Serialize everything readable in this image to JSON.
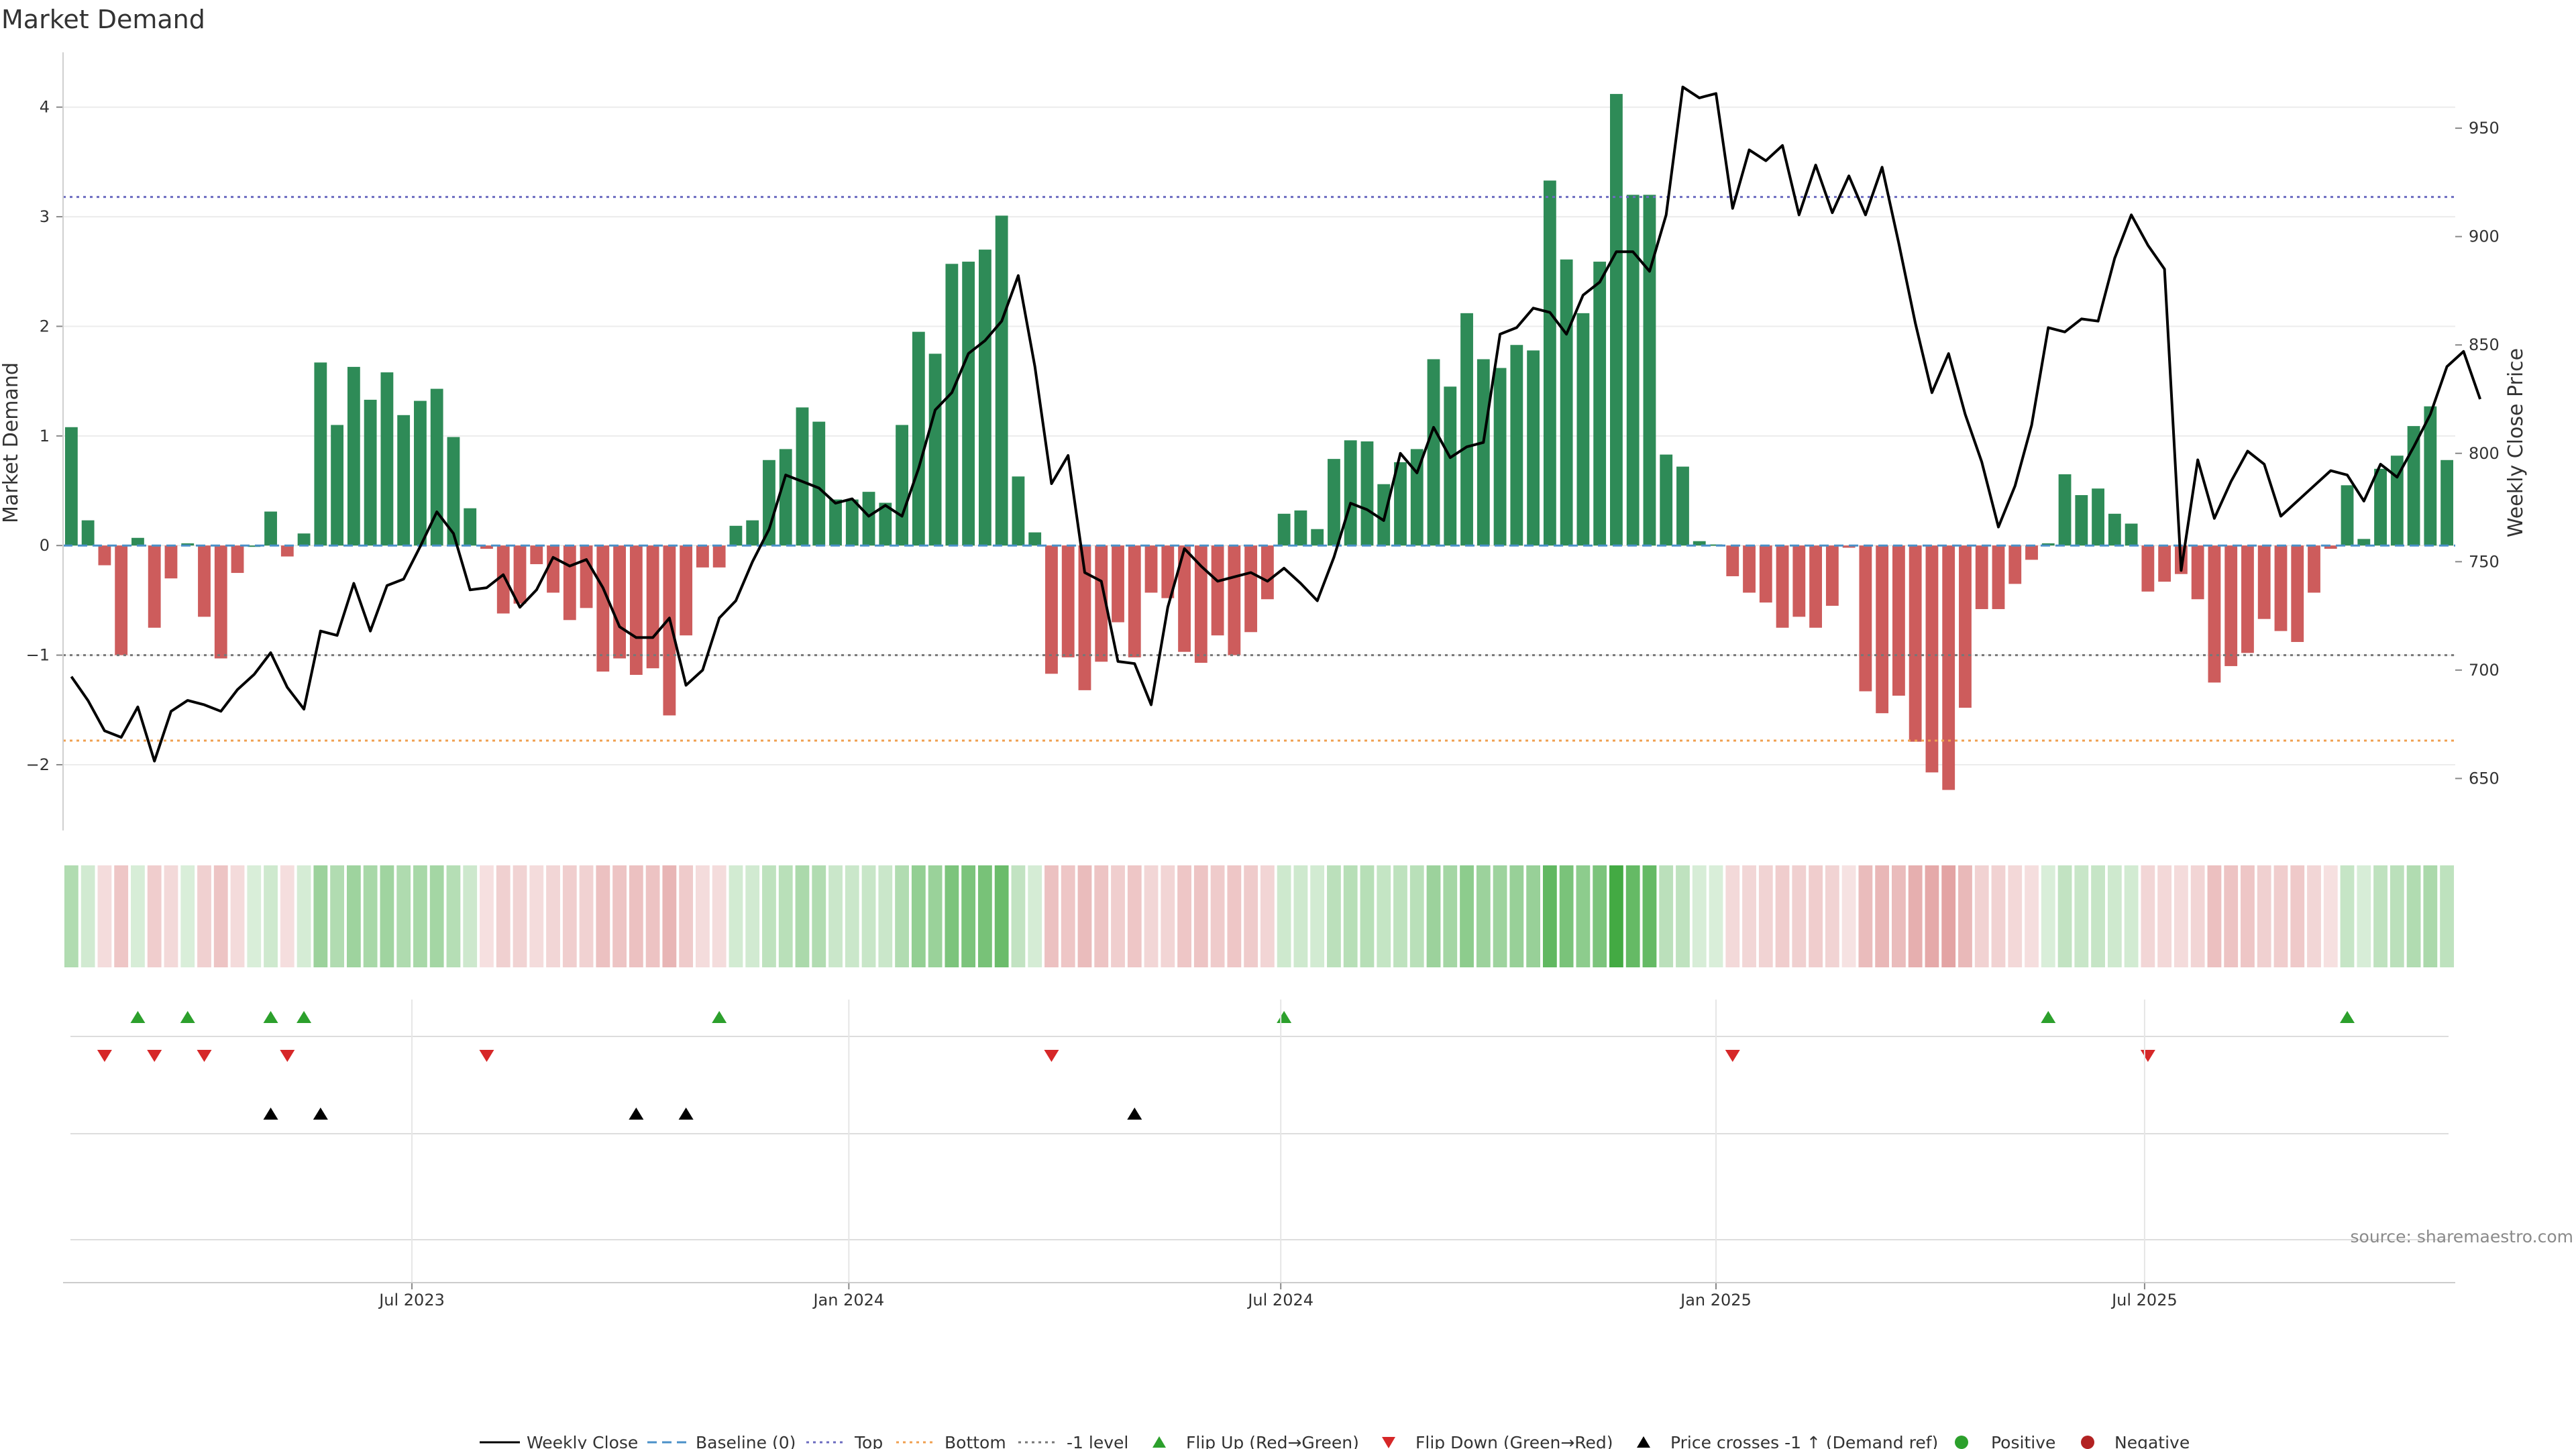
{
  "chart_data": {
    "type": "bar",
    "title": "Market Demand",
    "ylabel": "Market Demand",
    "y2label": "Weekly Close Price",
    "ylim": [
      -2.6,
      4.5
    ],
    "y2lim": [
      626,
      985
    ],
    "yticks": [
      4,
      3,
      2,
      1,
      0,
      -1,
      -2
    ],
    "ytick_labels": [
      "4",
      "3",
      "2",
      "1",
      "0",
      "−1",
      "−2"
    ],
    "y2ticks": [
      950,
      900,
      850,
      800,
      750,
      700,
      650
    ],
    "y2tick_labels": [
      "950",
      "900",
      "850",
      "800",
      "750",
      "700",
      "650"
    ],
    "reference_lines": {
      "top": 3.18,
      "minus_one": -1.0,
      "bottom": -1.78
    },
    "x_ticks": [
      {
        "label": "Jul 2023",
        "week": 20.5
      },
      {
        "label": "Jan 2024",
        "week": 46.8
      },
      {
        "label": "Jul 2024",
        "week": 72.8
      },
      {
        "label": "Jan 2025",
        "week": 99.0
      },
      {
        "label": "Jul 2025",
        "week": 124.8
      }
    ],
    "demand": [
      1.08,
      0.23,
      -0.18,
      -1.0,
      0.07,
      -0.75,
      -0.3,
      0.02,
      -0.65,
      -1.03,
      -0.25,
      0.0,
      0.31,
      -0.1,
      0.11,
      1.67,
      1.1,
      1.63,
      1.33,
      1.58,
      1.19,
      1.32,
      1.43,
      0.99,
      0.34,
      -0.03,
      -0.62,
      -0.53,
      -0.17,
      -0.43,
      -0.68,
      -0.57,
      -1.15,
      -1.03,
      -1.18,
      -1.12,
      -1.55,
      -0.82,
      -0.2,
      -0.2,
      0.18,
      0.23,
      0.78,
      0.88,
      1.26,
      1.13,
      0.42,
      0.42,
      0.49,
      0.39,
      1.1,
      1.95,
      1.75,
      2.57,
      2.59,
      2.7,
      3.01,
      0.63,
      0.12,
      -1.17,
      -1.02,
      -1.32,
      -1.06,
      -0.7,
      -1.02,
      -0.43,
      -0.48,
      -0.97,
      -1.07,
      -0.82,
      -1.0,
      -0.79,
      -0.49,
      0.29,
      0.32,
      0.15,
      0.79,
      0.96,
      0.95,
      0.56,
      0.76,
      0.88,
      1.7,
      1.45,
      2.12,
      1.7,
      1.62,
      1.83,
      1.78,
      3.33,
      2.61,
      2.12,
      2.59,
      4.12,
      3.2,
      3.2,
      0.83,
      0.72,
      0.04,
      0.01,
      -0.28,
      -0.43,
      -0.52,
      -0.75,
      -0.65,
      -0.75,
      -0.55,
      -0.02,
      -1.33,
      -1.53,
      -1.37,
      -1.79,
      -2.07,
      -2.23,
      -1.48,
      -0.58,
      -0.58,
      -0.35,
      -0.13,
      0.02,
      0.65,
      0.46,
      0.52,
      0.29,
      0.2,
      -0.42,
      -0.33,
      -0.26,
      -0.49,
      -1.25,
      -1.1,
      -0.98,
      -0.67,
      -0.78,
      -0.88,
      -0.43,
      -0.03,
      0.55,
      0.06,
      0.7,
      0.82,
      1.09,
      1.27,
      0.78
    ],
    "weekly_close": [
      697,
      686,
      672,
      669,
      683,
      658,
      681,
      686,
      684,
      681,
      691,
      698,
      708,
      692,
      682,
      718,
      716,
      740,
      718,
      739,
      742,
      757,
      773,
      763,
      737,
      738,
      744,
      729,
      737,
      752,
      748,
      751,
      738,
      720,
      715,
      715,
      724,
      693,
      700,
      724,
      732,
      750,
      765,
      790,
      787,
      784,
      777,
      779,
      771,
      776,
      771,
      793,
      820,
      828,
      846,
      852,
      861,
      882,
      840,
      786,
      799,
      745,
      741,
      704,
      703,
      684,
      729,
      756,
      748,
      741,
      743,
      745,
      741,
      747,
      740,
      732,
      752,
      777,
      774,
      769,
      800,
      791,
      812,
      798,
      803,
      805,
      855,
      858,
      867,
      865,
      855,
      873,
      879,
      893,
      893,
      884,
      910,
      969,
      964,
      966,
      913,
      940,
      935,
      942,
      910,
      933,
      911,
      928,
      910,
      932,
      897,
      860,
      828,
      846,
      818,
      796,
      766,
      785,
      813,
      858,
      856,
      862,
      861,
      890,
      910,
      896,
      885,
      746,
      797,
      770,
      787,
      801,
      795,
      771,
      778,
      785,
      792,
      790,
      778,
      795,
      789,
      803,
      818,
      840,
      847,
      825
    ],
    "flip_up_weeks": [
      4,
      7,
      12,
      14,
      39,
      73,
      119,
      137
    ],
    "flip_down_weeks": [
      2,
      5,
      8,
      13,
      25,
      59,
      100,
      125
    ],
    "price_cross_weeks": [
      12,
      15,
      34,
      37,
      64
    ]
  },
  "colors": {
    "positive_bar": "#2e8b57",
    "negative_bar": "#cd5c5c",
    "price_line": "#000000",
    "baseline": "#4a90c8",
    "top_line": "#6c6cc0",
    "bottom_line": "#f0a050",
    "minus_one_line": "#777777",
    "flip_up": "#2ca02c",
    "flip_down": "#d62728",
    "price_cross": "#000000",
    "positive_dot": "#2ca02c",
    "negative_dot": "#b22222"
  },
  "legend": {
    "weekly_close": "Weekly Close",
    "baseline": "Baseline (0)",
    "top": "Top",
    "bottom": "Bottom",
    "minus_one": "-1 level",
    "flip_up": "Flip Up (Red→Green)",
    "flip_down": "Flip Down (Green→Red)",
    "price_cross": "Price crosses -1 ↑ (Demand ref)",
    "positive": "Positive",
    "negative": "Negative"
  },
  "source": "source: sharemaestro.com"
}
